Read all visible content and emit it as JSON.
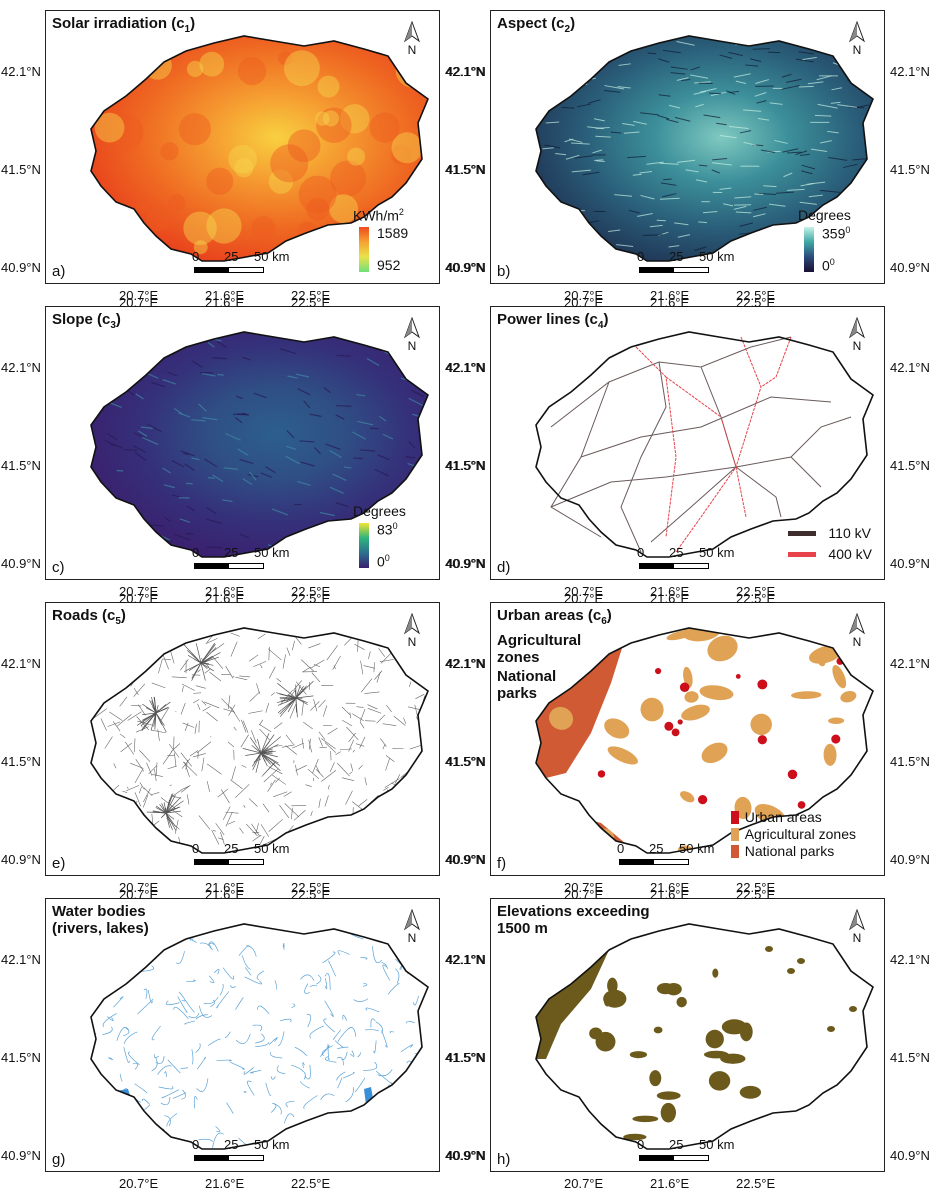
{
  "lon_labels": [
    "20.7°E",
    "21.6°E",
    "22.5°E"
  ],
  "lat_labels": [
    "42.1°N",
    "41.5°N",
    "40.9°N"
  ],
  "north_label": "N",
  "scale": {
    "l0": "0",
    "l1": "25",
    "l2": "50 km"
  },
  "panels": [
    {
      "id": "a",
      "letter": "a)",
      "title": "Solar irradiation (c",
      "title_sub": "1",
      "title_end": ")",
      "legend": {
        "type": "gradient",
        "unit": "KWh/m",
        "unit_sup": "2",
        "max": "1589",
        "min": "952",
        "colors": [
          "#ef4a1c",
          "#f5a332",
          "#e8e34a",
          "#6fe07a"
        ]
      }
    },
    {
      "id": "b",
      "letter": "b)",
      "title": "Aspect (c",
      "title_sub": "2",
      "title_end": ")",
      "legend": {
        "type": "gradient",
        "unit": "Degrees",
        "max": "359",
        "max_sup": "0",
        "min": "0",
        "min_sup": "0",
        "colors": [
          "#c5f2e6",
          "#3fa8a6",
          "#2c4b7a",
          "#1a1033"
        ]
      }
    },
    {
      "id": "c",
      "letter": "c)",
      "title": "Slope (c",
      "title_sub": "3",
      "title_end": ")",
      "legend": {
        "type": "gradient",
        "unit": "Degrees",
        "max": "83",
        "max_sup": "0",
        "min": "0",
        "min_sup": "0",
        "colors": [
          "#f0e532",
          "#2fb47c",
          "#2b6f8e",
          "#3b1f6e"
        ]
      }
    },
    {
      "id": "d",
      "letter": "d)",
      "title": "Power lines (c",
      "title_sub": "4",
      "title_end": ")",
      "legend": {
        "type": "lines",
        "items": [
          {
            "label": "110 kV",
            "color": "#3e2e2e"
          },
          {
            "label": "400 kV",
            "color": "#e8424a"
          }
        ]
      }
    },
    {
      "id": "e",
      "letter": "e)",
      "title": "Roads (c",
      "title_sub": "5",
      "title_end": ")"
    },
    {
      "id": "f",
      "letter": "f)",
      "title": "Urban areas (c",
      "title_sub": "6",
      "title_end": ")",
      "extra_titles": [
        "Agricultural zones",
        "National parks"
      ],
      "legend": {
        "type": "boxes",
        "items": [
          {
            "label": "Urban areas",
            "color": "#cc0f1a"
          },
          {
            "label": "Agricultural zones",
            "color": "#e0a254"
          },
          {
            "label": "National parks",
            "color": "#cf5a33"
          }
        ]
      }
    },
    {
      "id": "g",
      "letter": "g)",
      "title": "Water bodies\n(rivers, lakes)"
    },
    {
      "id": "h",
      "letter": "h)",
      "title": "Elevations exceeding\n1500 m"
    }
  ],
  "colors": {
    "outline": "#111111",
    "river": "#5aa2d6",
    "lake": "#3a8fd9",
    "road": "#666666",
    "elev": "#6b5a1c",
    "agri": "#e0a254",
    "park": "#cf5a33",
    "urban": "#cc0f1a"
  }
}
